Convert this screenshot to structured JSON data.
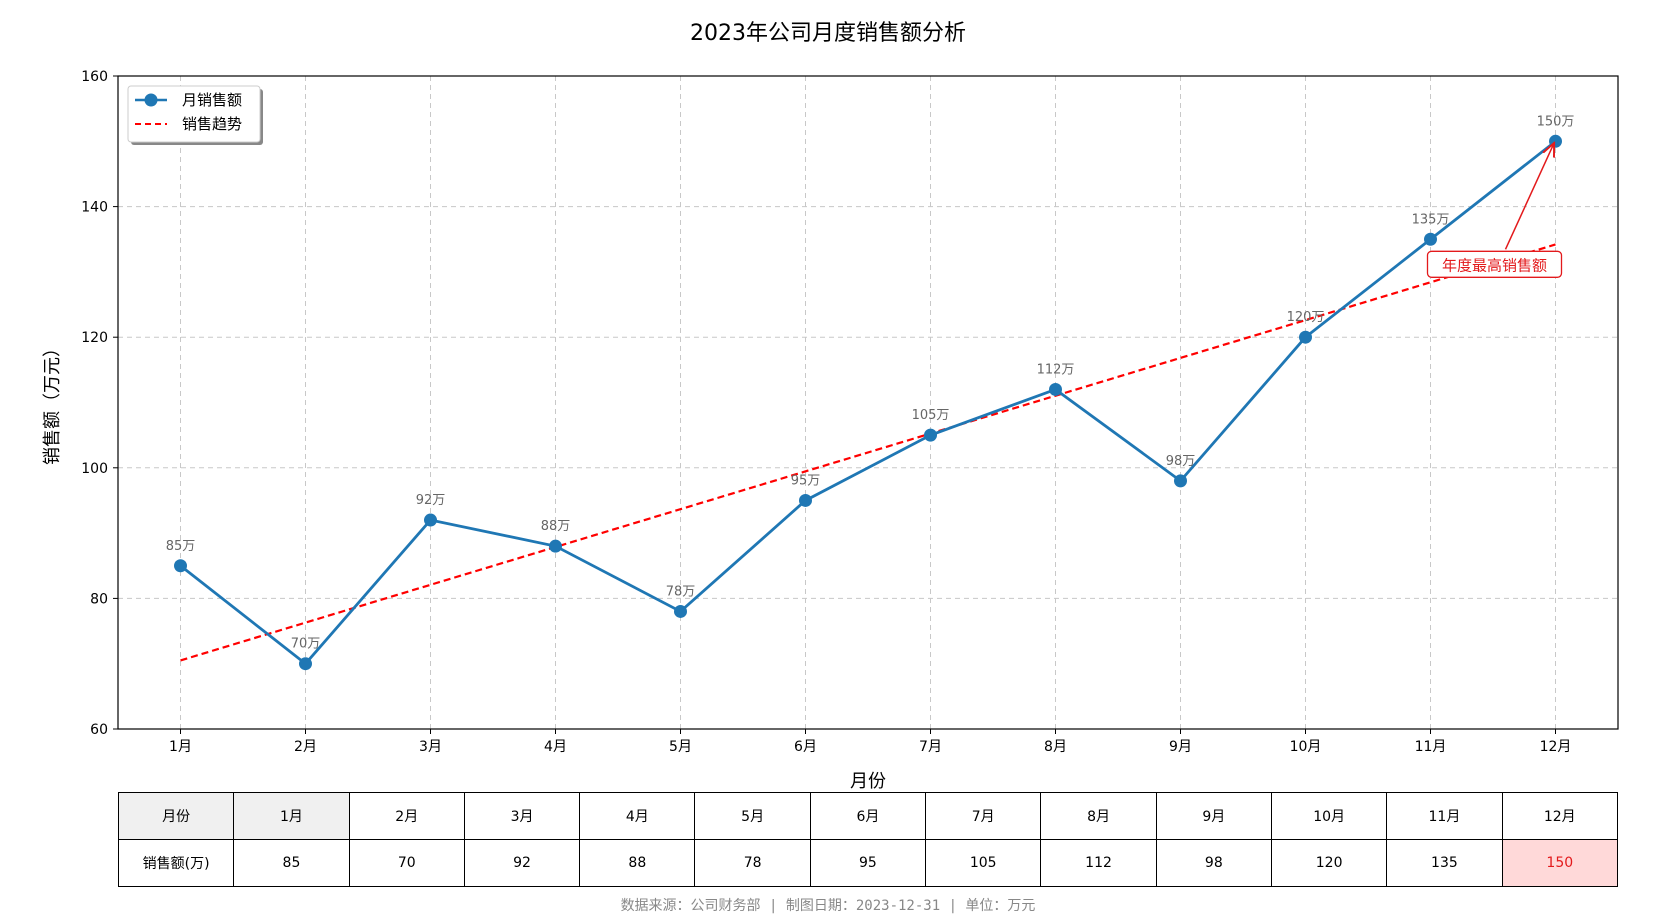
{
  "chart_data": {
    "type": "line",
    "title": "2023年公司月度销售额分析",
    "xlabel": "月份",
    "ylabel": "销售额（万元）",
    "ylim": [
      60,
      160
    ],
    "yticks": [
      60,
      80,
      100,
      120,
      140,
      160
    ],
    "grid": true,
    "legend_position": "top-left",
    "categories": [
      "1月",
      "2月",
      "3月",
      "4月",
      "5月",
      "6月",
      "7月",
      "8月",
      "9月",
      "10月",
      "11月",
      "12月"
    ],
    "series": [
      {
        "name": "月销售额",
        "values": [
          85,
          70,
          92,
          88,
          78,
          95,
          105,
          112,
          98,
          120,
          135,
          150
        ],
        "data_labels": [
          "85万",
          "70万",
          "92万",
          "88万",
          "78万",
          "95万",
          "105万",
          "112万",
          "98万",
          "120万",
          "135万",
          "150万"
        ],
        "color": "#1f77b4",
        "style": "solid-with-markers"
      },
      {
        "name": "销售趋势",
        "start": [
          1,
          70.5
        ],
        "end": [
          12,
          134.2
        ],
        "color": "#ff0000",
        "style": "dashed"
      }
    ],
    "annotation": {
      "text": "年度最高销售额",
      "target_category": "12月",
      "target_value": 150,
      "color": "#e31a1c"
    }
  },
  "table": {
    "row_headers": [
      "月份",
      "销售额(万)"
    ],
    "months": [
      "1月",
      "2月",
      "3月",
      "4月",
      "5月",
      "6月",
      "7月",
      "8月",
      "9月",
      "10月",
      "11月",
      "12月"
    ],
    "values": [
      "85",
      "70",
      "92",
      "88",
      "78",
      "95",
      "105",
      "112",
      "98",
      "120",
      "135",
      "150"
    ],
    "highlight_index": 11,
    "header_shaded_index": 0,
    "highlight_color": "#ffd9d9"
  },
  "footer": "数据来源：公司财务部 | 制图日期：2023-12-31 | 单位：万元"
}
